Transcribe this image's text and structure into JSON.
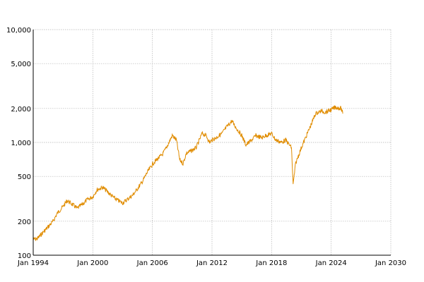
{
  "chart_data": {
    "type": "line",
    "title": "",
    "xlabel": "",
    "ylabel": "",
    "y_scale": "log",
    "grid": true,
    "xlim": [
      "1994-01",
      "2030-01"
    ],
    "ylim": [
      100,
      10000
    ],
    "x_ticks": [
      {
        "date": "1994-01",
        "label": "Jan 1994"
      },
      {
        "date": "2000-01",
        "label": "Jan 2000"
      },
      {
        "date": "2006-01",
        "label": "Jan 2006"
      },
      {
        "date": "2012-01",
        "label": "Jan 2012"
      },
      {
        "date": "2018-01",
        "label": "Jan 2018"
      },
      {
        "date": "2024-01",
        "label": "Jan 2024"
      },
      {
        "date": "2030-01",
        "label": "Jan 2030"
      }
    ],
    "y_ticks": [
      {
        "value": 100,
        "label": "100"
      },
      {
        "value": 200,
        "label": "200"
      },
      {
        "value": 500,
        "label": "500"
      },
      {
        "value": 1000,
        "label": "1,000"
      },
      {
        "value": 2000,
        "label": "2,000"
      },
      {
        "value": 5000,
        "label": "5,000"
      },
      {
        "value": 10000,
        "label": "10,000"
      }
    ],
    "series": [
      {
        "color": "#e08c00",
        "points": [
          [
            "1994-01",
            138
          ],
          [
            "1994-06",
            140
          ],
          [
            "1995-01",
            160
          ],
          [
            "1995-06",
            175
          ],
          [
            "1996-01",
            200
          ],
          [
            "1996-06",
            235
          ],
          [
            "1997-01",
            270
          ],
          [
            "1997-06",
            305
          ],
          [
            "1998-01",
            280
          ],
          [
            "1998-06",
            260
          ],
          [
            "1999-01",
            285
          ],
          [
            "1999-06",
            310
          ],
          [
            "2000-01",
            330
          ],
          [
            "2000-06",
            380
          ],
          [
            "2001-01",
            400
          ],
          [
            "2001-06",
            370
          ],
          [
            "2002-01",
            330
          ],
          [
            "2002-06",
            310
          ],
          [
            "2003-01",
            290
          ],
          [
            "2003-06",
            310
          ],
          [
            "2004-01",
            340
          ],
          [
            "2004-06",
            380
          ],
          [
            "2005-01",
            450
          ],
          [
            "2005-06",
            530
          ],
          [
            "2006-01",
            640
          ],
          [
            "2006-06",
            700
          ],
          [
            "2007-01",
            780
          ],
          [
            "2007-06",
            900
          ],
          [
            "2008-01",
            1150
          ],
          [
            "2008-06",
            1050
          ],
          [
            "2008-10",
            700
          ],
          [
            "2009-02",
            650
          ],
          [
            "2009-06",
            800
          ],
          [
            "2010-01",
            850
          ],
          [
            "2010-06",
            900
          ],
          [
            "2011-01",
            1200
          ],
          [
            "2011-06",
            1150
          ],
          [
            "2011-10",
            1000
          ],
          [
            "2012-01",
            1050
          ],
          [
            "2012-06",
            1100
          ],
          [
            "2013-01",
            1200
          ],
          [
            "2013-06",
            1350
          ],
          [
            "2014-01",
            1550
          ],
          [
            "2014-06",
            1350
          ],
          [
            "2015-01",
            1150
          ],
          [
            "2015-06",
            950
          ],
          [
            "2016-01",
            1050
          ],
          [
            "2016-06",
            1150
          ],
          [
            "2017-01",
            1100
          ],
          [
            "2017-06",
            1150
          ],
          [
            "2018-01",
            1200
          ],
          [
            "2018-06",
            1050
          ],
          [
            "2019-01",
            1000
          ],
          [
            "2019-06",
            1050
          ],
          [
            "2020-01",
            900
          ],
          [
            "2020-03",
            420
          ],
          [
            "2020-06",
            650
          ],
          [
            "2021-01",
            900
          ],
          [
            "2021-06",
            1100
          ],
          [
            "2022-01",
            1450
          ],
          [
            "2022-06",
            1800
          ],
          [
            "2023-01",
            1900
          ],
          [
            "2023-06",
            1850
          ],
          [
            "2024-01",
            1950
          ],
          [
            "2024-06",
            2050
          ],
          [
            "2025-01",
            2000
          ],
          [
            "2025-03",
            1800
          ]
        ]
      }
    ]
  }
}
